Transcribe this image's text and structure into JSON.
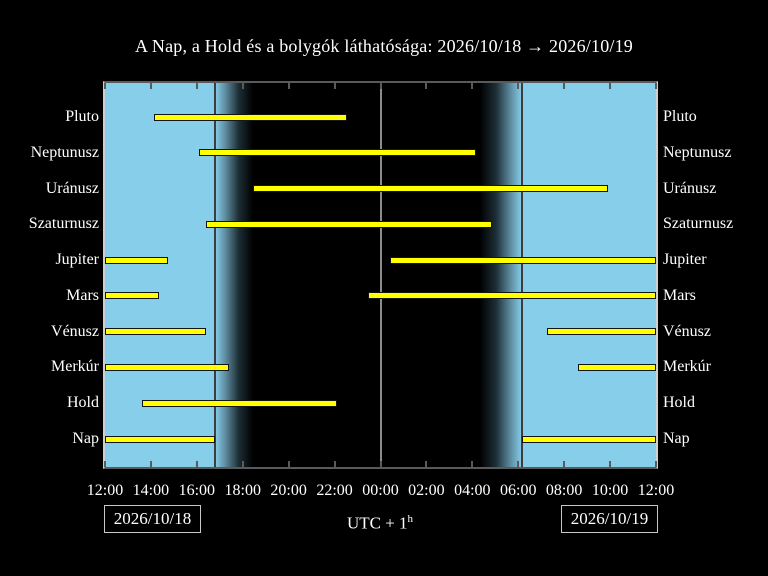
{
  "header": {
    "title": "A Nap, a Hold és a bolygók láthatósága: 2026/10/18 → 2026/10/19"
  },
  "footer": {
    "left_date": "2026/10/18",
    "right_date": "2026/10/19",
    "utc_prefix": "UTC + 1",
    "utc_sup": "h"
  },
  "chart_data": {
    "type": "bar",
    "subtype": "horizontal-visibility-gantt",
    "title": "A Nap, a Hold és a bolygók láthatósága: 2026/10/18 → 2026/10/19",
    "x_axis": {
      "tick_labels": [
        "12:00",
        "14:00",
        "16:00",
        "18:00",
        "20:00",
        "22:00",
        "00:00",
        "02:00",
        "04:00",
        "06:00",
        "08:00",
        "10:00",
        "12:00"
      ],
      "hours_from_noon_range": [
        0,
        24
      ],
      "tick_step_hours": 2
    },
    "rows": [
      {
        "label": "Pluto",
        "intervals": [
          [
            2.13,
            10.53
          ]
        ]
      },
      {
        "label": "Neptunusz",
        "intervals": [
          [
            4.09,
            16.16
          ]
        ]
      },
      {
        "label": "Uránusz",
        "intervals": [
          [
            6.44,
            21.9
          ]
        ]
      },
      {
        "label": "Szaturnusz",
        "intervals": [
          [
            4.4,
            16.85
          ]
        ]
      },
      {
        "label": "Jupiter",
        "intervals": [
          [
            0,
            2.74
          ],
          [
            12.4,
            24
          ]
        ]
      },
      {
        "label": "Mars",
        "intervals": [
          [
            0,
            2.35
          ],
          [
            11.45,
            24
          ]
        ]
      },
      {
        "label": "Vénusz",
        "intervals": [
          [
            0,
            4.4
          ],
          [
            19.25,
            24
          ]
        ]
      },
      {
        "label": "Merkúr",
        "intervals": [
          [
            0,
            5.4
          ],
          [
            20.6,
            24
          ]
        ]
      },
      {
        "label": "Hold",
        "intervals": [
          [
            1.6,
            10.1
          ]
        ]
      },
      {
        "label": "Nap",
        "intervals": [
          [
            0,
            4.79
          ],
          [
            18.16,
            24
          ]
        ]
      }
    ],
    "sun_events_hours_from_noon": {
      "sunset": 4.79,
      "twilight_end": 6.45,
      "twilight_start": 16.33,
      "sunrise": 18.16,
      "midnight_gridline": 12
    },
    "colors": {
      "day_sky": "#87ceeb",
      "night_sky": "#000000",
      "bar_fill": "#ffff00",
      "bar_border": "#141414",
      "text": "#ffffff",
      "midnight_line": "#8c8c8c",
      "sun_line": "#3d3d3d"
    },
    "legend": "none",
    "grid": "midnight line only"
  }
}
